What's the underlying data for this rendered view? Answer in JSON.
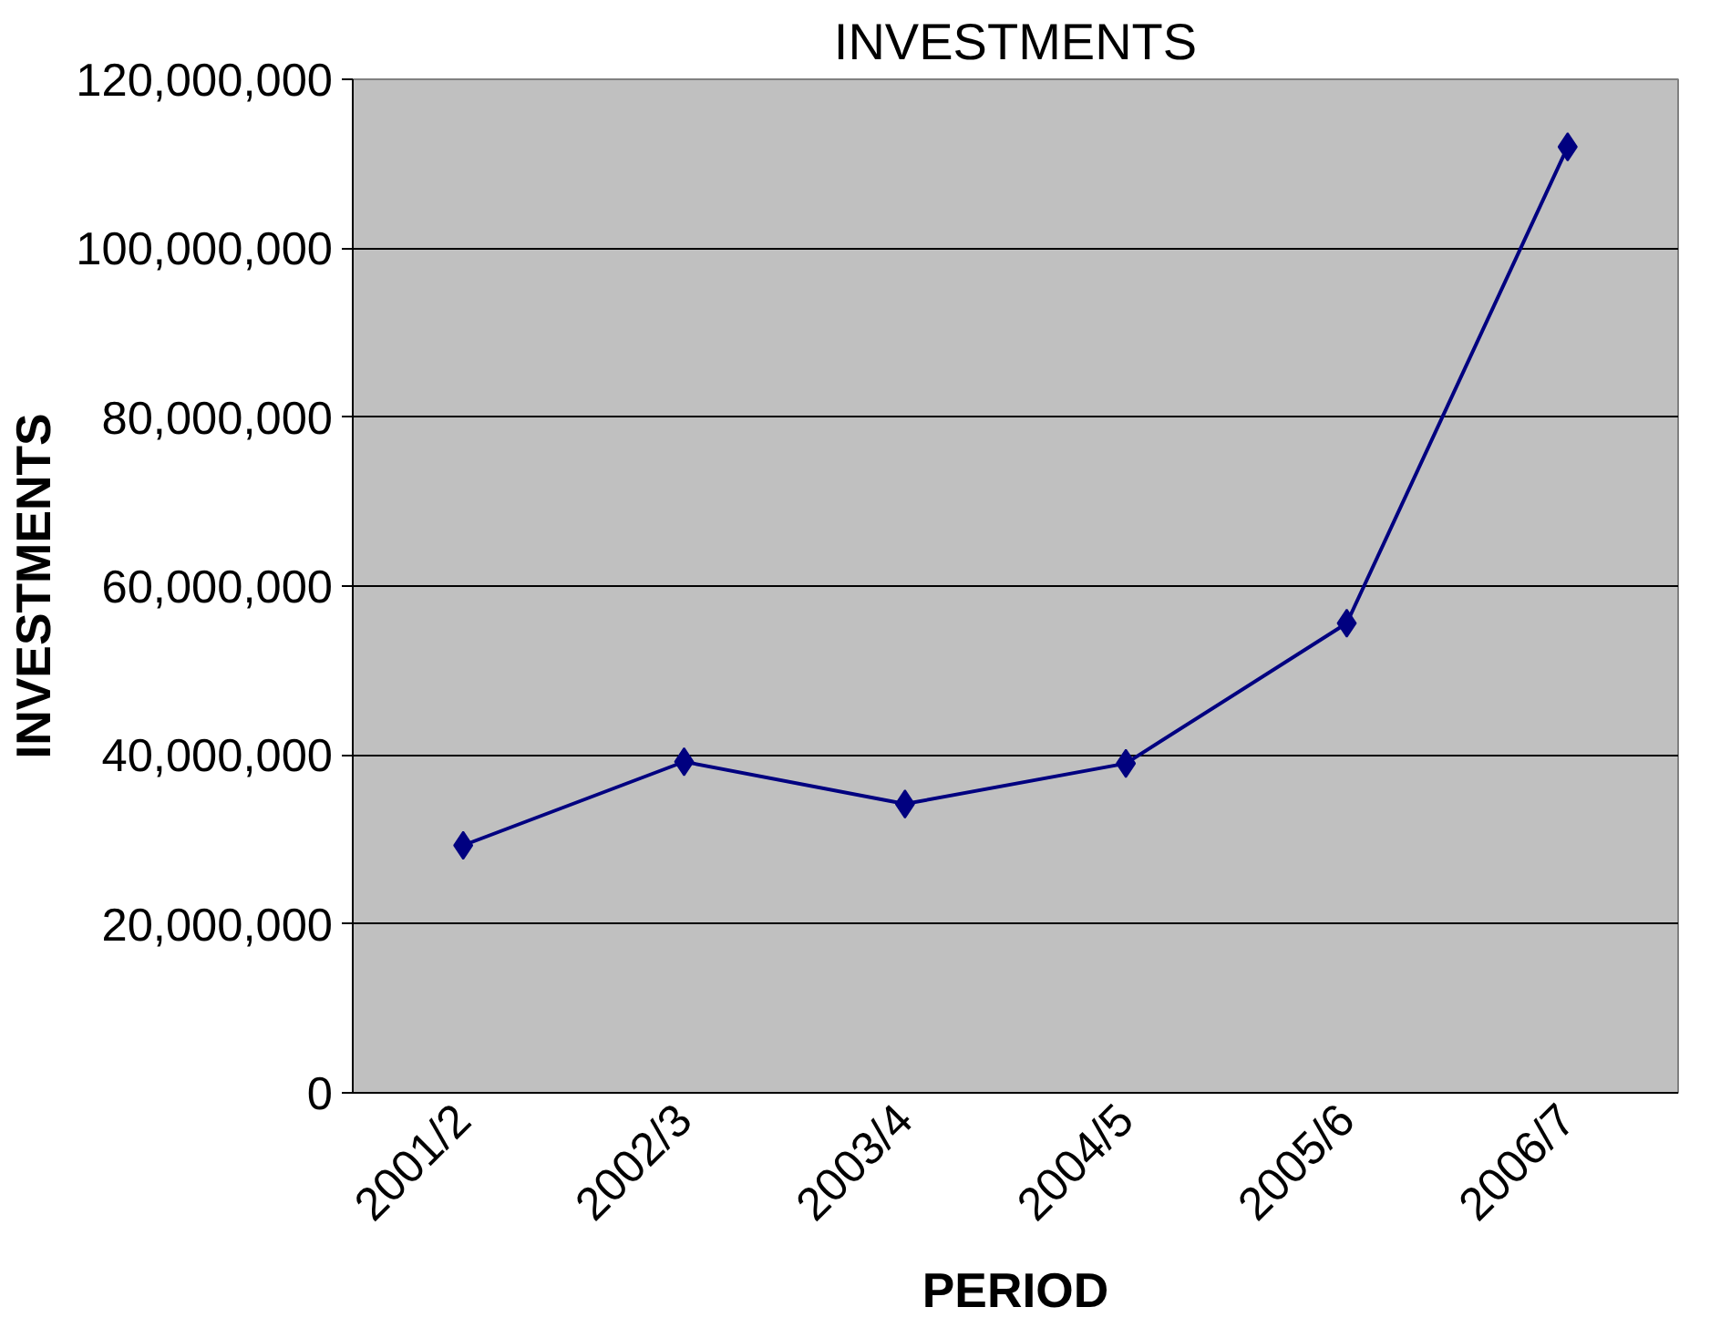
{
  "chart_data": {
    "type": "line",
    "title": "INVESTMENTS",
    "xlabel": "PERIOD",
    "ylabel": "INVESTMENTS",
    "categories": [
      "2001/2",
      "2002/3",
      "2003/4",
      "2004/5",
      "2005/6",
      "2006/7"
    ],
    "series": [
      {
        "color": "#000080",
        "values": [
          29300000,
          39200000,
          34200000,
          39000000,
          55600000,
          112000000
        ]
      }
    ],
    "ylim": [
      0,
      120000000
    ],
    "yticks": [
      {
        "value": 0,
        "label": "0"
      },
      {
        "value": 20000000,
        "label": "20,000,000"
      },
      {
        "value": 40000000,
        "label": "40,000,000"
      },
      {
        "value": 60000000,
        "label": "60,000,000"
      },
      {
        "value": 80000000,
        "label": "80,000,000"
      },
      {
        "value": 100000000,
        "label": "100,000,000"
      },
      {
        "value": 120000000,
        "label": "120,000,000"
      }
    ],
    "grid": "y",
    "marker": "diamond",
    "line_style": "solid"
  }
}
